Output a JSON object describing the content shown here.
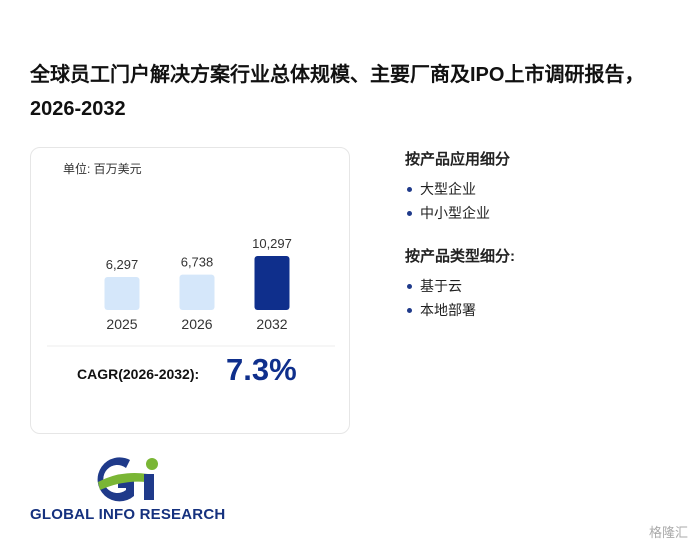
{
  "header": {
    "title": "全球员工门户解决方案行业总体规模、主要厂商及IPO上市调研报告，2026-2032"
  },
  "chart_data": {
    "type": "bar",
    "unit": "单位: 百万美元",
    "categories": [
      "2025",
      "2026",
      "2032"
    ],
    "values": [
      6297,
      6738,
      10297
    ],
    "value_labels": [
      "6,297",
      "6,738",
      "10,297"
    ],
    "colors": [
      "#d5e7fa",
      "#d5e7fa",
      "#0f2f8c"
    ]
  },
  "cagr": {
    "label": "CAGR(2026-2032):",
    "value": "7.3%"
  },
  "segments": [
    {
      "heading": "按产品应用细分",
      "items": [
        "大型企业",
        "中小型企业"
      ]
    },
    {
      "heading": "按产品类型细分:",
      "items": [
        "基于云",
        "本地部署"
      ]
    }
  ],
  "brand": "GLOBAL INFO RESEARCH",
  "watermark": "格隆汇"
}
